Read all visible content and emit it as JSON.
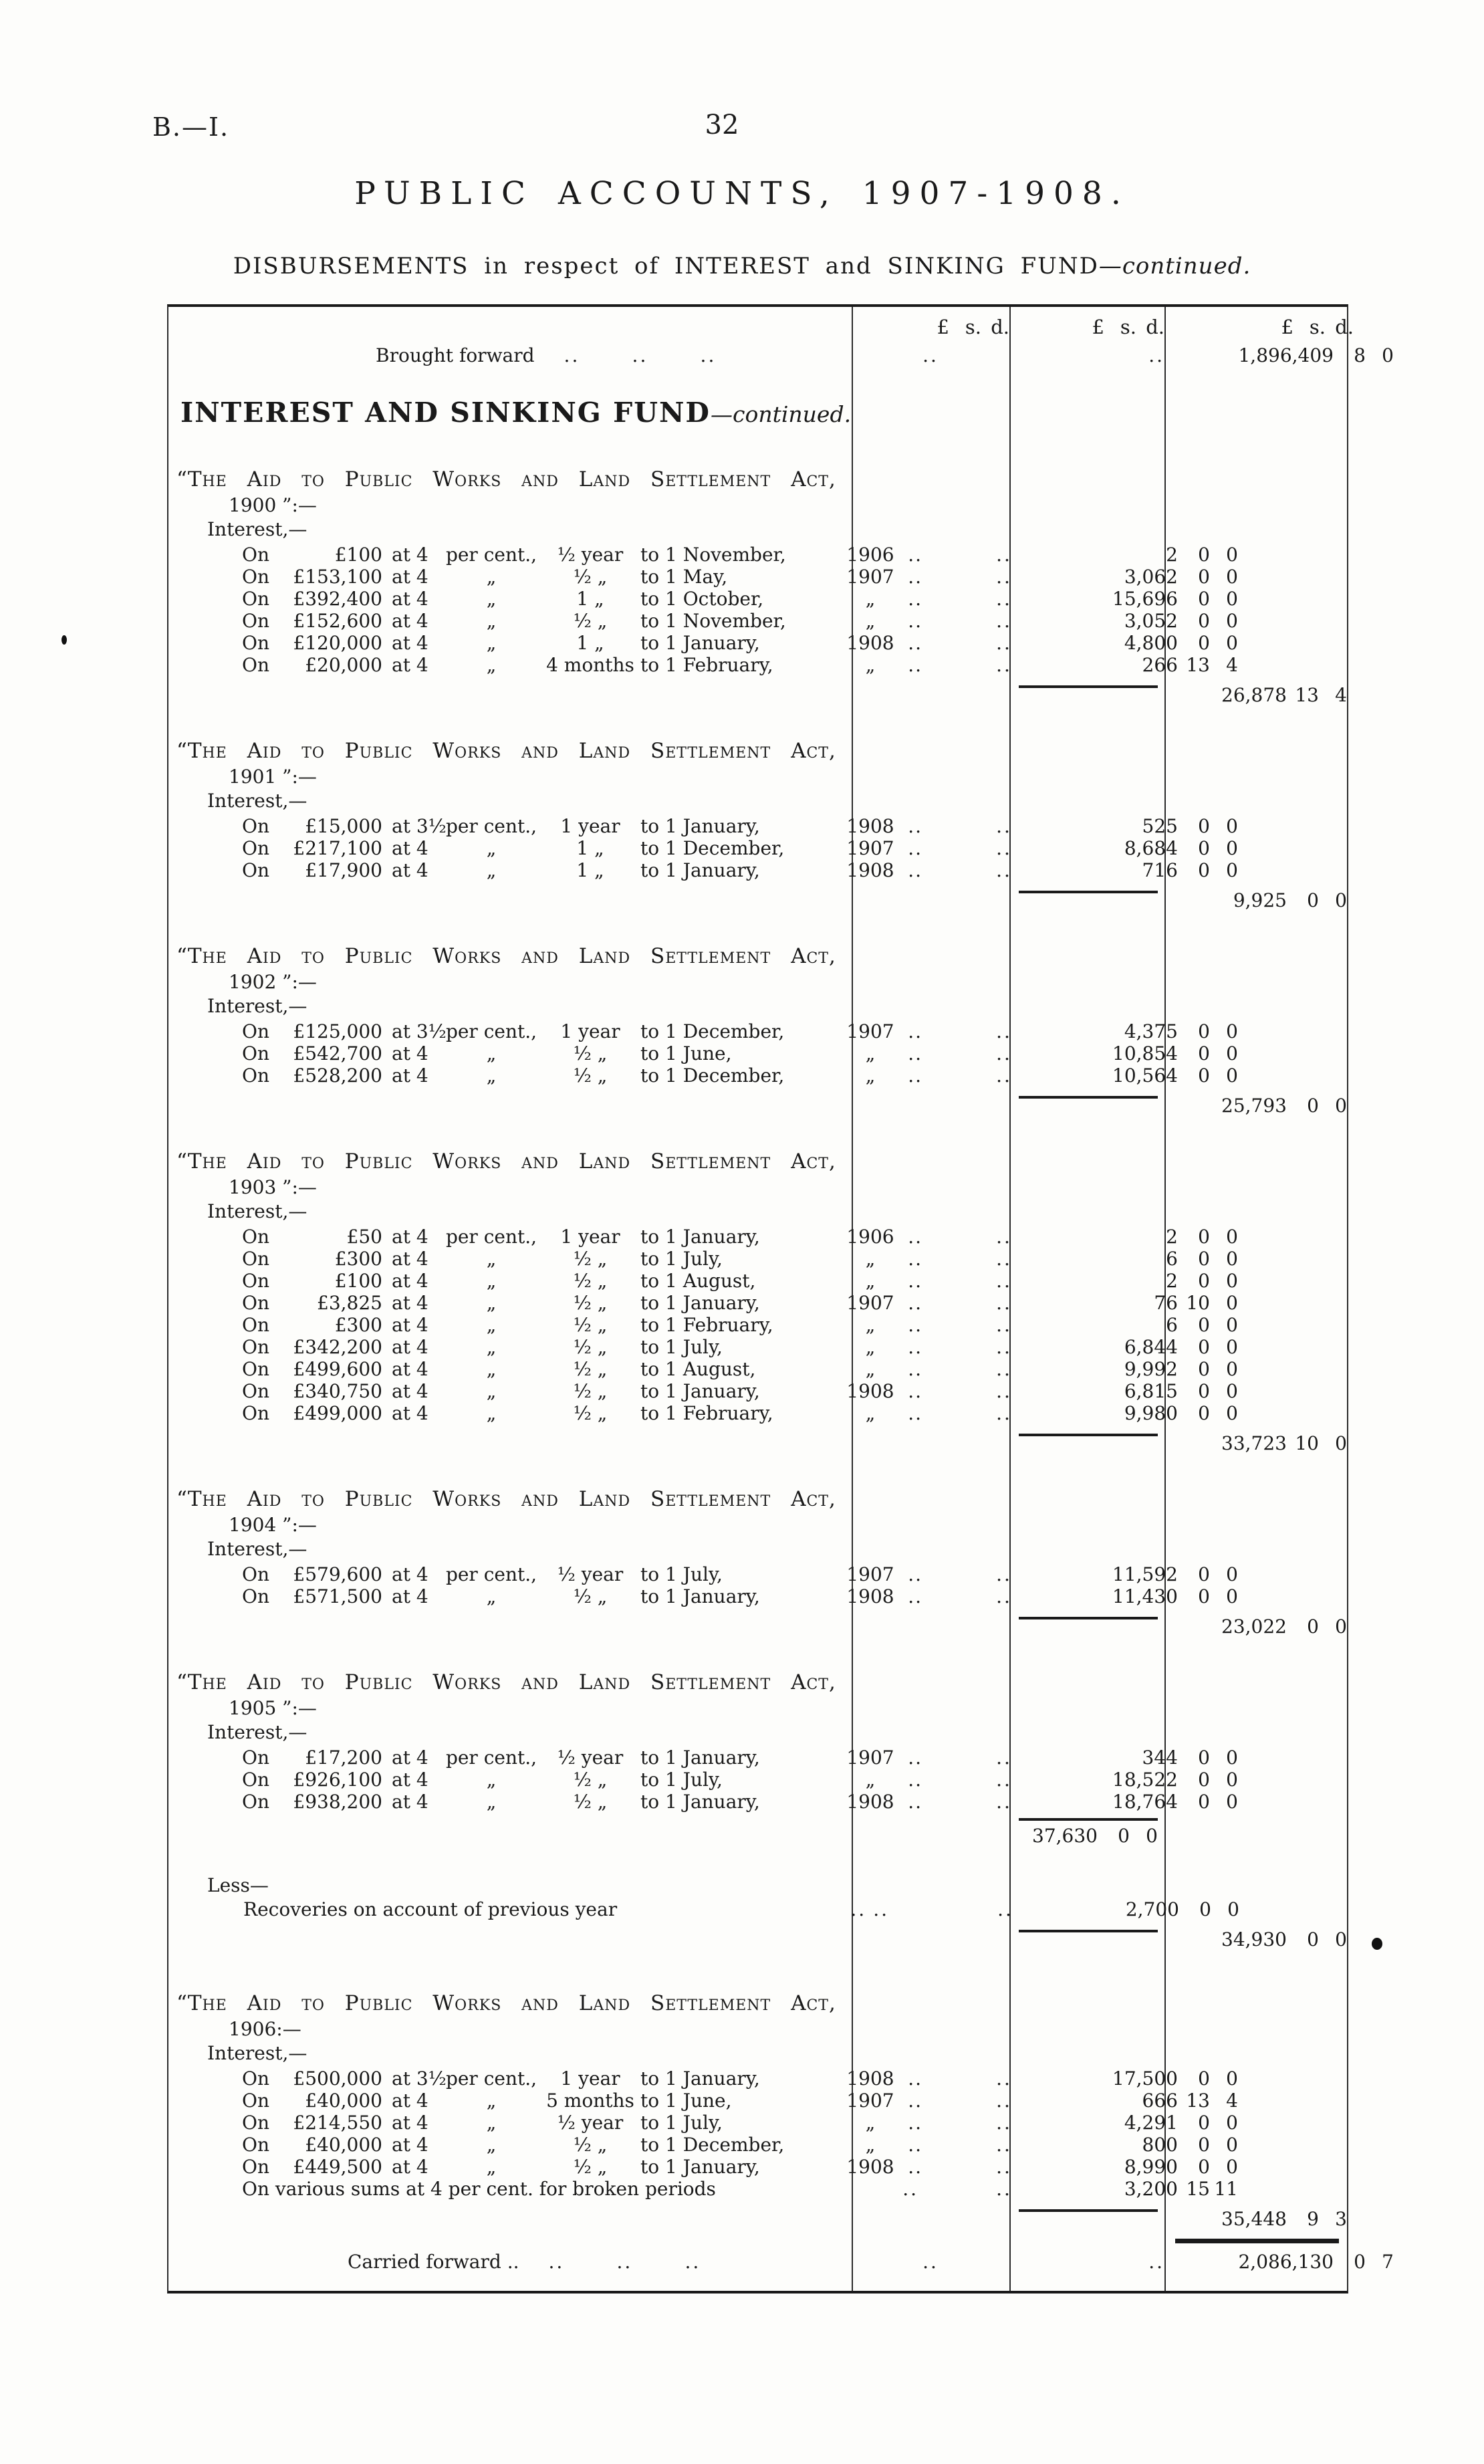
{
  "colors": {
    "paper": "#fdfdfb",
    "ink": "#1a1a1a"
  },
  "header": {
    "doc_ref": "B.—I.",
    "page_number": "32",
    "title": "PUBLIC ACCOUNTS, 1907-1908.",
    "sub_lead": "DISBURSEMENTS",
    "sub_mid": "in respect of",
    "sub_int": "INTEREST",
    "sub_and": "and",
    "sub_fund": "SINKING FUND",
    "sub_cont": "—continued."
  },
  "table": {
    "col_headers": {
      "pound": "£",
      "shilling": "s.",
      "pence": "d."
    },
    "brought_forward": {
      "label": "Brought forward",
      "leader_dots": [
        "..",
        "..",
        ".."
      ],
      "c1_dots": "..",
      "c2_dots": "..",
      "amount": {
        "pounds": "1,896,409",
        "s": "8",
        "d": "0"
      }
    },
    "fund_heading": {
      "main": "INTEREST AND SINKING FUND",
      "cont": "—continued."
    },
    "sections": [
      {
        "act_line1": "“The Aid to Public Works and Land Settlement Act,",
        "act_line2": "1900 ”:—",
        "sub_heading": "Interest,—",
        "items": [
          {
            "on": "On",
            "principal": "£100",
            "rate_a": "at 4",
            "rate_b": "per cent.,",
            "frac": "½ year",
            "dest": "to 1 November,",
            "year": "1906",
            "dots": "..",
            "c1_dots": "..",
            "amount": {
              "pounds": "2",
              "s": "0",
              "d": "0"
            }
          },
          {
            "on": "On",
            "principal": "£153,100",
            "rate_a": "at 4",
            "rate_b": "„",
            "frac": "½ „",
            "dest": "to 1 May,",
            "year": "1907",
            "dots": "..",
            "c1_dots": "..",
            "amount": {
              "pounds": "3,062",
              "s": "0",
              "d": "0"
            }
          },
          {
            "on": "On",
            "principal": "£392,400",
            "rate_a": "at 4",
            "rate_b": "„",
            "frac": "1 „",
            "dest": "to 1 October,",
            "year": "„",
            "dots": "..",
            "c1_dots": "..",
            "amount": {
              "pounds": "15,696",
              "s": "0",
              "d": "0"
            }
          },
          {
            "on": "On",
            "principal": "£152,600",
            "rate_a": "at 4",
            "rate_b": "„",
            "frac": "½ „",
            "dest": "to 1 November,",
            "year": "„",
            "dots": "..",
            "c1_dots": "..",
            "amount": {
              "pounds": "3,052",
              "s": "0",
              "d": "0"
            }
          },
          {
            "on": "On",
            "principal": "£120,000",
            "rate_a": "at 4",
            "rate_b": "„",
            "frac": "1 „",
            "dest": "to 1 January,",
            "year": "1908",
            "dots": "..",
            "c1_dots": "..",
            "amount": {
              "pounds": "4,800",
              "s": "0",
              "d": "0"
            }
          },
          {
            "on": "On",
            "principal": "£20,000",
            "rate_a": "at 4",
            "rate_b": "„",
            "frac": "4 months",
            "dest": "to 1 February,",
            "year": "„",
            "dots": "..",
            "c1_dots": "..",
            "amount": {
              "pounds": "266",
              "s": "13",
              "d": "4"
            }
          }
        ],
        "total": {
          "pounds": "26,878",
          "s": "13",
          "d": "4"
        }
      },
      {
        "act_line1": "“The Aid to Public Works and Land Settlement Act,",
        "act_line2": "1901 ”:—",
        "sub_heading": "Interest,—",
        "items": [
          {
            "on": "On",
            "principal": "£15,000",
            "rate_a": "at 3½",
            "rate_b": "per cent.,",
            "frac": "1 year",
            "dest": "to 1 January,",
            "year": "1908",
            "dots": "..",
            "c1_dots": "..",
            "amount": {
              "pounds": "525",
              "s": "0",
              "d": "0"
            }
          },
          {
            "on": "On",
            "principal": "£217,100",
            "rate_a": "at 4",
            "rate_b": "„",
            "frac": "1 „",
            "dest": "to 1 December,",
            "year": "1907",
            "dots": "..",
            "c1_dots": "..",
            "amount": {
              "pounds": "8,684",
              "s": "0",
              "d": "0"
            }
          },
          {
            "on": "On",
            "principal": "£17,900",
            "rate_a": "at 4",
            "rate_b": "„",
            "frac": "1 „",
            "dest": "to 1 January,",
            "year": "1908",
            "dots": "..",
            "c1_dots": "..",
            "amount": {
              "pounds": "716",
              "s": "0",
              "d": "0"
            }
          }
        ],
        "total": {
          "pounds": "9,925",
          "s": "0",
          "d": "0"
        }
      },
      {
        "act_line1": "“The Aid to Public Works and Land Settlement Act,",
        "act_line2": "1902 ”:—",
        "sub_heading": "Interest,—",
        "items": [
          {
            "on": "On",
            "principal": "£125,000",
            "rate_a": "at 3½",
            "rate_b": "per cent.,",
            "frac": "1 year",
            "dest": "to 1 December,",
            "year": "1907",
            "dots": "..",
            "c1_dots": "..",
            "amount": {
              "pounds": "4,375",
              "s": "0",
              "d": "0"
            }
          },
          {
            "on": "On",
            "principal": "£542,700",
            "rate_a": "at 4",
            "rate_b": "„",
            "frac": "½ „",
            "dest": "to 1 June,",
            "year": "„",
            "dots": "..",
            "c1_dots": "..",
            "amount": {
              "pounds": "10,854",
              "s": "0",
              "d": "0"
            }
          },
          {
            "on": "On",
            "principal": "£528,200",
            "rate_a": "at 4",
            "rate_b": "„",
            "frac": "½ „",
            "dest": "to 1 December,",
            "year": "„",
            "dots": "..",
            "c1_dots": "..",
            "amount": {
              "pounds": "10,564",
              "s": "0",
              "d": "0"
            }
          }
        ],
        "total": {
          "pounds": "25,793",
          "s": "0",
          "d": "0"
        }
      },
      {
        "act_line1": "“The Aid to Public Works and Land Settlement Act,",
        "act_line2": "1903 ”:—",
        "sub_heading": "Interest,—",
        "items": [
          {
            "on": "On",
            "principal": "£50",
            "rate_a": "at 4",
            "rate_b": "per cent.,",
            "frac": "1 year",
            "dest": "to 1 January,",
            "year": "1906",
            "dots": "..",
            "c1_dots": "..",
            "amount": {
              "pounds": "2",
              "s": "0",
              "d": "0"
            }
          },
          {
            "on": "On",
            "principal": "£300",
            "rate_a": "at 4",
            "rate_b": "„",
            "frac": "½ „",
            "dest": "to 1 July,",
            "year": "„",
            "dots": "..",
            "c1_dots": "..",
            "amount": {
              "pounds": "6",
              "s": "0",
              "d": "0"
            }
          },
          {
            "on": "On",
            "principal": "£100",
            "rate_a": "at 4",
            "rate_b": "„",
            "frac": "½ „",
            "dest": "to 1 August,",
            "year": "„",
            "dots": "..",
            "c1_dots": "..",
            "amount": {
              "pounds": "2",
              "s": "0",
              "d": "0"
            }
          },
          {
            "on": "On",
            "principal": "£3,825",
            "rate_a": "at 4",
            "rate_b": "„",
            "frac": "½ „",
            "dest": "to 1 January,",
            "year": "1907",
            "dots": "..",
            "c1_dots": "..",
            "amount": {
              "pounds": "76",
              "s": "10",
              "d": "0"
            }
          },
          {
            "on": "On",
            "principal": "£300",
            "rate_a": "at 4",
            "rate_b": "„",
            "frac": "½ „",
            "dest": "to 1 February,",
            "year": "„",
            "dots": "..",
            "c1_dots": "..",
            "amount": {
              "pounds": "6",
              "s": "0",
              "d": "0"
            }
          },
          {
            "on": "On",
            "principal": "£342,200",
            "rate_a": "at 4",
            "rate_b": "„",
            "frac": "½ „",
            "dest": "to 1 July,",
            "year": "„",
            "dots": "..",
            "c1_dots": "..",
            "amount": {
              "pounds": "6,844",
              "s": "0",
              "d": "0"
            }
          },
          {
            "on": "On",
            "principal": "£499,600",
            "rate_a": "at 4",
            "rate_b": "„",
            "frac": "½ „",
            "dest": "to 1 August,",
            "year": "„",
            "dots": "..",
            "c1_dots": "..",
            "amount": {
              "pounds": "9,992",
              "s": "0",
              "d": "0"
            }
          },
          {
            "on": "On",
            "principal": "£340,750",
            "rate_a": "at 4",
            "rate_b": "„",
            "frac": "½ „",
            "dest": "to 1 January,",
            "year": "1908",
            "dots": "..",
            "c1_dots": "..",
            "amount": {
              "pounds": "6,815",
              "s": "0",
              "d": "0"
            }
          },
          {
            "on": "On",
            "principal": "£499,000",
            "rate_a": "at 4",
            "rate_b": "„",
            "frac": "½ „",
            "dest": "to 1 February,",
            "year": "„",
            "dots": "..",
            "c1_dots": "..",
            "amount": {
              "pounds": "9,980",
              "s": "0",
              "d": "0"
            }
          }
        ],
        "total": {
          "pounds": "33,723",
          "s": "10",
          "d": "0"
        }
      },
      {
        "act_line1": "“The Aid to Public Works and Land Settlement Act,",
        "act_line2": "1904 ”:—",
        "sub_heading": "Interest,—",
        "items": [
          {
            "on": "On",
            "principal": "£579,600",
            "rate_a": "at 4",
            "rate_b": "per cent.,",
            "frac": "½ year",
            "dest": "to 1 July,",
            "year": "1907",
            "dots": "..",
            "c1_dots": "..",
            "amount": {
              "pounds": "11,592",
              "s": "0",
              "d": "0"
            }
          },
          {
            "on": "On",
            "principal": "£571,500",
            "rate_a": "at 4",
            "rate_b": "„",
            "frac": "½ „",
            "dest": "to 1 January,",
            "year": "1908",
            "dots": "..",
            "c1_dots": "..",
            "amount": {
              "pounds": "11,430",
              "s": "0",
              "d": "0"
            }
          }
        ],
        "total": {
          "pounds": "23,022",
          "s": "0",
          "d": "0"
        }
      },
      {
        "act_line1": "“The Aid to Public Works and Land Settlement Act,",
        "act_line2": "1905 ”:—",
        "sub_heading": "Interest,—",
        "items": [
          {
            "on": "On",
            "principal": "£17,200",
            "rate_a": "at 4",
            "rate_b": "per cent.,",
            "frac": "½ year",
            "dest": "to 1 January,",
            "year": "1907",
            "dots": "..",
            "c1_dots": "..",
            "amount": {
              "pounds": "344",
              "s": "0",
              "d": "0"
            }
          },
          {
            "on": "On",
            "principal": "£926,100",
            "rate_a": "at 4",
            "rate_b": "„",
            "frac": "½ „",
            "dest": "to 1 July,",
            "year": "„",
            "dots": "..",
            "c1_dots": "..",
            "amount": {
              "pounds": "18,522",
              "s": "0",
              "d": "0"
            }
          },
          {
            "on": "On",
            "principal": "£938,200",
            "rate_a": "at 4",
            "rate_b": "„",
            "frac": "½ „",
            "dest": "to 1 January,",
            "year": "1908",
            "dots": "..",
            "c1_dots": "..",
            "amount": {
              "pounds": "18,764",
              "s": "0",
              "d": "0"
            }
          }
        ],
        "subtotal": {
          "pounds": "37,630",
          "s": "0",
          "d": "0"
        },
        "less_label": "Less—",
        "less_item": {
          "text": "Recoveries on account of previous year",
          "dots": "..",
          "dots2": "..",
          "c1_dots": "..",
          "amount": {
            "pounds": "2,700",
            "s": "0",
            "d": "0"
          }
        },
        "total": {
          "pounds": "34,930",
          "s": "0",
          "d": "0"
        }
      },
      {
        "act_line1": "“The Aid to Public Works and Land Settlement Act,",
        "act_line2": "1906:—",
        "sub_heading": "Interest,—",
        "items": [
          {
            "on": "On",
            "principal": "£500,000",
            "rate_a": "at 3½",
            "rate_b": "per cent.,",
            "frac": "1 year",
            "dest": "to 1 January,",
            "year": "1908",
            "dots": "..",
            "c1_dots": "..",
            "amount": {
              "pounds": "17,500",
              "s": "0",
              "d": "0"
            }
          },
          {
            "on": "On",
            "principal": "£40,000",
            "rate_a": "at 4",
            "rate_b": "„",
            "frac": "5 months",
            "dest": "to 1 June,",
            "year": "1907",
            "dots": "..",
            "c1_dots": "..",
            "amount": {
              "pounds": "666",
              "s": "13",
              "d": "4"
            }
          },
          {
            "on": "On",
            "principal": "£214,550",
            "rate_a": "at 4",
            "rate_b": "„",
            "frac": "½ year",
            "dest": "to 1 July,",
            "year": "„",
            "dots": "..",
            "c1_dots": "..",
            "amount": {
              "pounds": "4,291",
              "s": "0",
              "d": "0"
            }
          },
          {
            "on": "On",
            "principal": "£40,000",
            "rate_a": "at 4",
            "rate_b": "„",
            "frac": "½ „",
            "dest": "to 1 December,",
            "year": "„",
            "dots": "..",
            "c1_dots": "..",
            "amount": {
              "pounds": "800",
              "s": "0",
              "d": "0"
            }
          },
          {
            "on": "On",
            "principal": "£449,500",
            "rate_a": "at 4",
            "rate_b": "„",
            "frac": "½ „",
            "dest": "to 1 January,",
            "year": "1908",
            "dots": "..",
            "c1_dots": "..",
            "amount": {
              "pounds": "8,990",
              "s": "0",
              "d": "0"
            }
          },
          {
            "freeform": "On various sums at 4 per cent. for broken periods",
            "dots": "..",
            "c1_dots": "..",
            "amount": {
              "pounds": "3,200",
              "s": "15",
              "d": "11"
            }
          }
        ],
        "total": {
          "pounds": "35,448",
          "s": "9",
          "d": "3"
        }
      }
    ],
    "carried_forward": {
      "label": "Carried forward ..",
      "leader_dots": [
        "..",
        "..",
        ".."
      ],
      "c1_dots": "..",
      "c2_dots": "..",
      "amount": {
        "pounds": "2,086,130",
        "s": "0",
        "d": "7"
      }
    }
  }
}
